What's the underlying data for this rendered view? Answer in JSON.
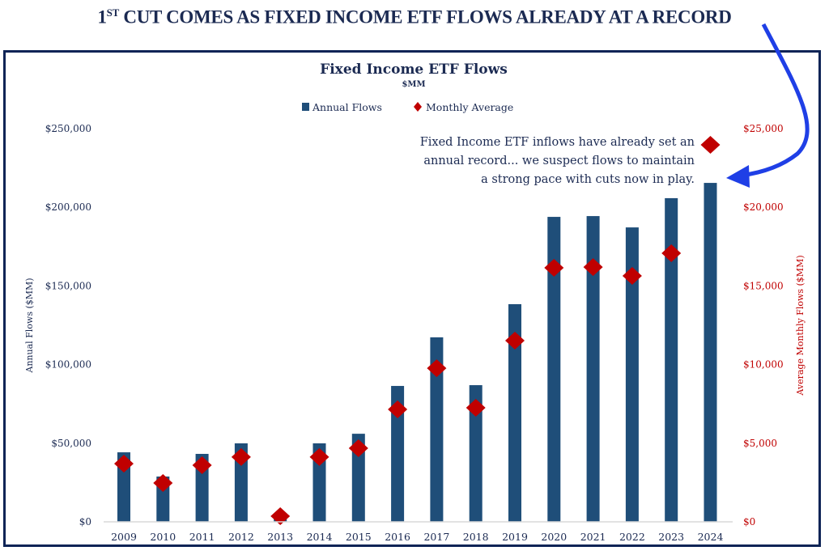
{
  "headline": {
    "main": "1",
    "sup": "ST",
    "rest": " CUT COMES AS FIXED INCOME ETF FLOWS ALREADY AT A RECORD"
  },
  "chart_data": {
    "type": "bar",
    "title": "Fixed Income ETF Flows",
    "subtitle": "$MM",
    "categories": [
      "2009",
      "2010",
      "2011",
      "2012",
      "2013",
      "2014",
      "2015",
      "2016",
      "2017",
      "2018",
      "2019",
      "2020",
      "2021",
      "2022",
      "2023",
      "2024"
    ],
    "series": [
      {
        "name": "Annual Flows",
        "type": "bar",
        "axis": "left",
        "color": "#1f4e79",
        "values": [
          44200,
          28800,
          43200,
          49900,
          4000,
          49900,
          56000,
          86400,
          117300,
          86900,
          138400,
          193900,
          194400,
          187200,
          205800,
          215500
        ]
      },
      {
        "name": "Monthly Average",
        "type": "scatter",
        "marker": "diamond",
        "axis": "right",
        "color": "#c00000",
        "values": [
          3700,
          2470,
          3600,
          4120,
          360,
          4120,
          4680,
          7150,
          9770,
          7250,
          11520,
          16150,
          16200,
          15640,
          17080,
          23970
        ]
      }
    ],
    "ylabel": "Annual Flows ($MM)",
    "ylim": [
      0,
      250000
    ],
    "yticks": [
      "$0",
      "$50,000",
      "$100,000",
      "$150,000",
      "$200,000",
      "$250,000"
    ],
    "y2label": "Average Monthly Flows ($MM)",
    "y2lim": [
      0,
      25000
    ],
    "y2ticks": [
      "$0",
      "$5,000",
      "$10,000",
      "$15,000",
      "$20,000",
      "$25,000"
    ],
    "legend_position": "top-center",
    "grid": false,
    "annotation": [
      "Fixed Income ETF inflows have already set an",
      "annual record... we suspect flows to maintain",
      "a strong pace with cuts now in play."
    ],
    "arrow_color": "#1f3fe6"
  }
}
